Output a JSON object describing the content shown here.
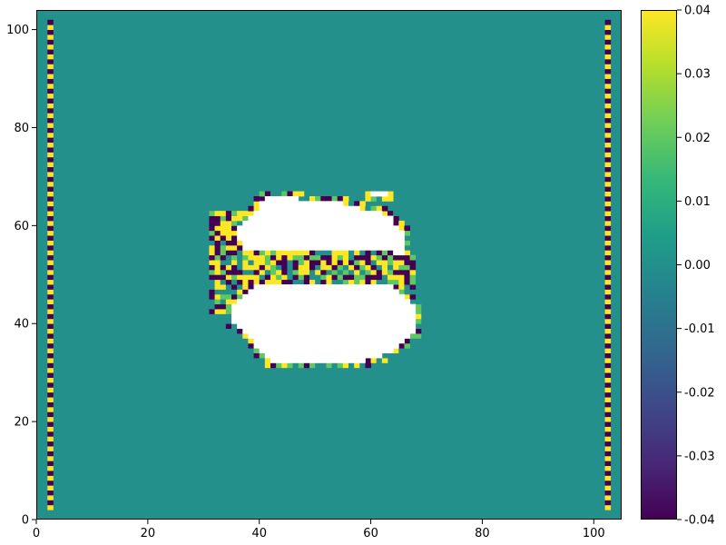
{
  "chart_data": {
    "type": "heatmap",
    "title": "",
    "xlabel": "",
    "ylabel": "",
    "xlim": [
      0,
      105
    ],
    "ylim": [
      0,
      104
    ],
    "x_ticks": [
      "0",
      "20",
      "40",
      "60",
      "80",
      "100"
    ],
    "y_ticks": [
      "0",
      "20",
      "40",
      "60",
      "80",
      "100"
    ],
    "colorbar": {
      "vmin": -0.04,
      "vmax": 0.04,
      "colormap": "viridis",
      "ticks": [
        "-0.04",
        "-0.03",
        "-0.02",
        "-0.01",
        "0.00",
        "0.01",
        "0.02",
        "0.03",
        "0.04"
      ]
    },
    "background_value": 0.0,
    "nan_color": "#ffffff",
    "boundary_columns": [
      {
        "x": 2,
        "y_range": [
          2,
          102
        ],
        "pattern": "alternating",
        "values": [
          0.04,
          -0.04
        ]
      },
      {
        "x": 102,
        "y_range": [
          2,
          102
        ],
        "pattern": "alternating",
        "values": [
          0.04,
          -0.04
        ]
      }
    ],
    "nan_regions": [
      {
        "name": "upper-blob",
        "rows": [
          [
            54,
            64,
            66
          ],
          [
            55,
            37,
            66
          ],
          [
            56,
            37,
            66
          ],
          [
            57,
            36,
            66
          ],
          [
            58,
            36,
            66
          ],
          [
            59,
            36,
            65
          ],
          [
            60,
            37,
            64
          ],
          [
            61,
            38,
            64
          ],
          [
            62,
            39,
            62
          ],
          [
            63,
            40,
            58
          ],
          [
            64,
            40,
            55
          ],
          [
            65,
            41,
            47
          ],
          [
            66,
            60,
            63
          ]
        ]
      },
      {
        "name": "lower-blob",
        "rows": [
          [
            32,
            42,
            59
          ],
          [
            33,
            41,
            62
          ],
          [
            34,
            40,
            64
          ],
          [
            35,
            39,
            65
          ],
          [
            36,
            39,
            66
          ],
          [
            37,
            38,
            67
          ],
          [
            38,
            37,
            68
          ],
          [
            39,
            36,
            68
          ],
          [
            40,
            35,
            68
          ],
          [
            41,
            35,
            68
          ],
          [
            42,
            35,
            68
          ],
          [
            43,
            35,
            68
          ],
          [
            44,
            36,
            67
          ],
          [
            45,
            37,
            66
          ],
          [
            46,
            38,
            65
          ],
          [
            47,
            39,
            64
          ]
        ]
      }
    ],
    "noisy_band": {
      "x_range": [
        31,
        69
      ],
      "y_range": [
        31,
        67
      ],
      "values": [
        -0.04,
        0.04,
        0.0,
        0.02
      ]
    }
  }
}
